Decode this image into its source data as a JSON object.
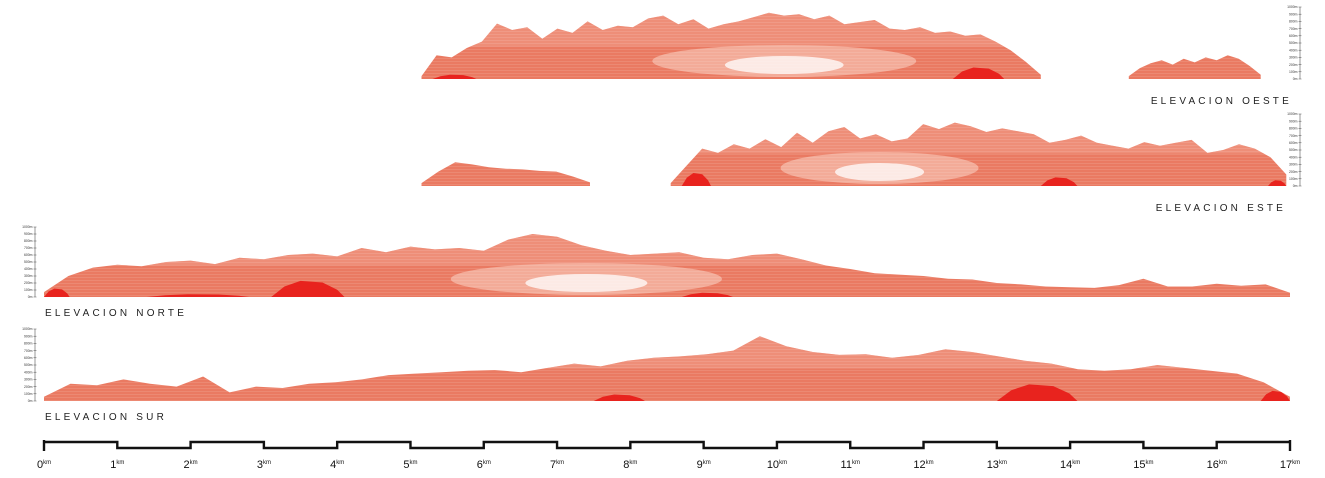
{
  "colors": {
    "terrain": "#ea7a62",
    "terrain_light": "#f5b4a2",
    "terrain_dark": "#e8231e",
    "highlight": "#ffffff",
    "ink": "#111111"
  },
  "elevation_scale": {
    "labels": [
      "1000m",
      "900m",
      "800m",
      "700m",
      "600m",
      "500m",
      "400m",
      "300m",
      "200m",
      "100m",
      "0m"
    ]
  },
  "sections": [
    {
      "id": "oeste",
      "label": "ELEVACION OESTE",
      "scale_side": "right",
      "label_side": "right",
      "segments": [
        {
          "from_km": 5.15,
          "to_km": 13.6,
          "profile": [
            40,
            330,
            300,
            430,
            520,
            770,
            680,
            720,
            560,
            700,
            640,
            800,
            680,
            740,
            720,
            840,
            880,
            760,
            830,
            700,
            760,
            800,
            860,
            920,
            880,
            900,
            830,
            880,
            760,
            790,
            820,
            700,
            680,
            720,
            640,
            660,
            600,
            620,
            520,
            400,
            240,
            60
          ]
        },
        {
          "from_km": 14.8,
          "to_km": 16.6,
          "profile": [
            40,
            150,
            220,
            260,
            200,
            280,
            230,
            300,
            260,
            330,
            280,
            180,
            60
          ]
        }
      ],
      "lighter_zones": [
        {
          "from_km": 8.2,
          "to_km": 11.8,
          "peak": 380,
          "center_km": 10.1
        }
      ],
      "dark_patches": [
        {
          "from_km": 5.3,
          "to_km": 5.9,
          "peak": 60
        },
        {
          "from_km": 12.4,
          "to_km": 13.1,
          "peak": 160
        }
      ]
    },
    {
      "id": "este",
      "label": "ELEVACION ESTE",
      "scale_side": "right",
      "label_side": "right",
      "segments": [
        {
          "from_km": 5.15,
          "to_km": 7.45,
          "profile": [
            40,
            200,
            330,
            300,
            260,
            240,
            230,
            210,
            200,
            130,
            50
          ]
        },
        {
          "from_km": 8.55,
          "to_km": 16.95,
          "profile": [
            40,
            280,
            520,
            460,
            580,
            520,
            650,
            540,
            740,
            600,
            760,
            820,
            660,
            720,
            620,
            660,
            860,
            790,
            880,
            830,
            750,
            800,
            760,
            720,
            600,
            640,
            700,
            600,
            560,
            520,
            610,
            560,
            600,
            640,
            460,
            500,
            580,
            520,
            400,
            160
          ]
        }
      ],
      "lighter_zones": [
        {
          "from_km": 10.2,
          "to_km": 12.9,
          "peak": 520,
          "center_km": 11.4
        }
      ],
      "dark_patches": [
        {
          "from_km": 8.7,
          "to_km": 9.1,
          "peak": 180
        },
        {
          "from_km": 13.6,
          "to_km": 14.1,
          "peak": 120
        },
        {
          "from_km": 16.7,
          "to_km": 16.95,
          "peak": 80
        }
      ]
    },
    {
      "id": "norte",
      "label": "ELEVACION NORTE",
      "scale_side": "left",
      "label_side": "left",
      "segments": [
        {
          "from_km": 0.0,
          "to_km": 17.0,
          "profile": [
            70,
            300,
            420,
            460,
            440,
            500,
            520,
            470,
            560,
            540,
            600,
            620,
            580,
            700,
            640,
            720,
            680,
            700,
            660,
            820,
            900,
            860,
            740,
            660,
            600,
            620,
            640,
            560,
            540,
            600,
            620,
            540,
            450,
            400,
            340,
            320,
            300,
            260,
            250,
            200,
            180,
            150,
            140,
            130,
            170,
            260,
            150,
            150,
            190,
            160,
            180,
            60
          ]
        }
      ],
      "lighter_zones": [
        {
          "from_km": 5.5,
          "to_km": 9.2,
          "peak": 300,
          "center_km": 7.4
        }
      ],
      "dark_patches": [
        {
          "from_km": 0.0,
          "to_km": 0.35,
          "peak": 120
        },
        {
          "from_km": 3.1,
          "to_km": 4.1,
          "peak": 230
        },
        {
          "from_km": 1.4,
          "to_km": 2.8,
          "peak": 40
        },
        {
          "from_km": 8.7,
          "to_km": 9.4,
          "peak": 60
        }
      ]
    },
    {
      "id": "sur",
      "label": "ELEVACION SUR",
      "scale_side": "left",
      "label_side": "left",
      "segments": [
        {
          "from_km": 0.0,
          "to_km": 17.0,
          "profile": [
            60,
            240,
            220,
            300,
            240,
            200,
            340,
            120,
            200,
            180,
            240,
            260,
            300,
            360,
            380,
            400,
            420,
            430,
            400,
            460,
            520,
            480,
            560,
            600,
            620,
            650,
            700,
            900,
            760,
            680,
            640,
            650,
            600,
            640,
            720,
            680,
            620,
            560,
            520,
            440,
            420,
            440,
            500,
            460,
            420,
            380,
            260,
            60
          ]
        }
      ],
      "lighter_zones": [],
      "dark_patches": [
        {
          "from_km": 7.5,
          "to_km": 8.2,
          "peak": 90
        },
        {
          "from_km": 13.0,
          "to_km": 14.1,
          "peak": 230
        },
        {
          "from_km": 16.6,
          "to_km": 17.0,
          "peak": 140
        }
      ]
    }
  ],
  "scale_bar": {
    "unit": "km",
    "labels": [
      "0",
      "1",
      "2",
      "3",
      "4",
      "5",
      "6",
      "7",
      "8",
      "9",
      "10",
      "11",
      "12",
      "13",
      "14",
      "15",
      "16",
      "17"
    ]
  }
}
